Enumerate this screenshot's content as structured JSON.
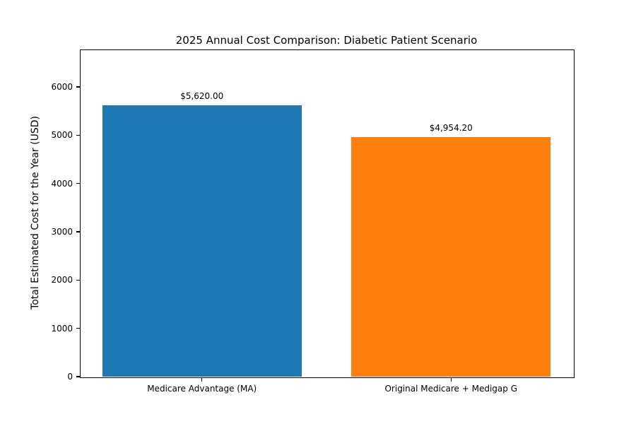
{
  "figure": {
    "background_color": "#ffffff",
    "text_color": "#000000",
    "spine_color": "#000000"
  },
  "chart_data": {
    "type": "bar",
    "title": "2025 Annual Cost Comparison: Diabetic Patient Scenario",
    "xlabel": "",
    "ylabel": "Total Estimated Cost for the Year (USD)",
    "categories": [
      "Medicare Advantage (MA)",
      "Original Medicare + Medigap G"
    ],
    "values": [
      5620.0,
      4954.2
    ],
    "bar_value_labels": [
      "$5,620.00",
      "$4,954.20"
    ],
    "bar_colors": [
      "#1f77b4",
      "#ff7f0e"
    ],
    "yticks": [
      0,
      1000,
      2000,
      3000,
      4000,
      5000,
      6000
    ],
    "ylim": [
      0,
      6776
    ],
    "grid": false,
    "legend_position": "none"
  }
}
